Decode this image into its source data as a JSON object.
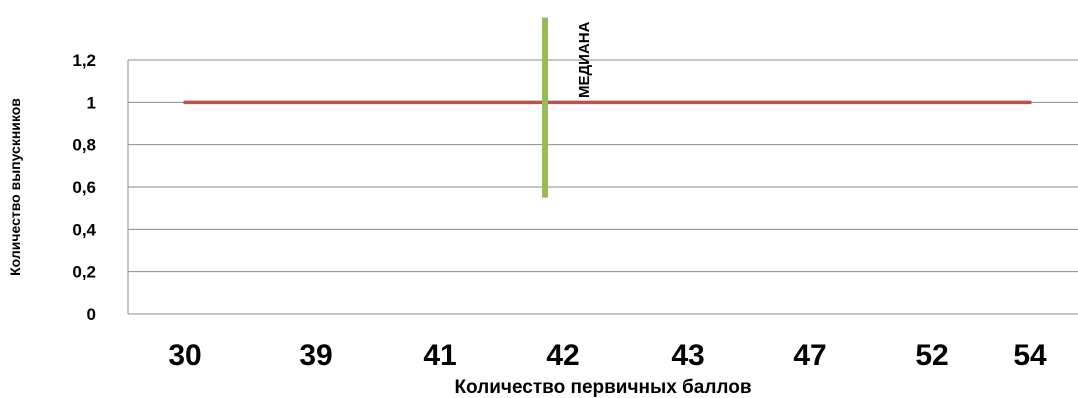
{
  "chart_data": {
    "type": "line",
    "title": "",
    "xlabel": "Количество первичных баллов",
    "ylabel": "Количество выпускников",
    "categories": [
      "30",
      "39",
      "41",
      "42",
      "43",
      "47",
      "52",
      "54"
    ],
    "series": [
      {
        "values": [
          1,
          1,
          1,
          1,
          1,
          1,
          1,
          1
        ],
        "color": "#c0504d"
      }
    ],
    "ylim": [
      0,
      1.2
    ],
    "yticks": [
      "0",
      "0,2",
      "0,4",
      "0,6",
      "0,8",
      "1",
      "1,2"
    ],
    "grid": true,
    "legend": "none",
    "annotations": [
      {
        "type": "vertical-line",
        "label": "МЕДИАНА",
        "x_category": "42",
        "y_range": [
          0.55,
          1.4
        ],
        "color": "#9bbb59"
      }
    ]
  }
}
